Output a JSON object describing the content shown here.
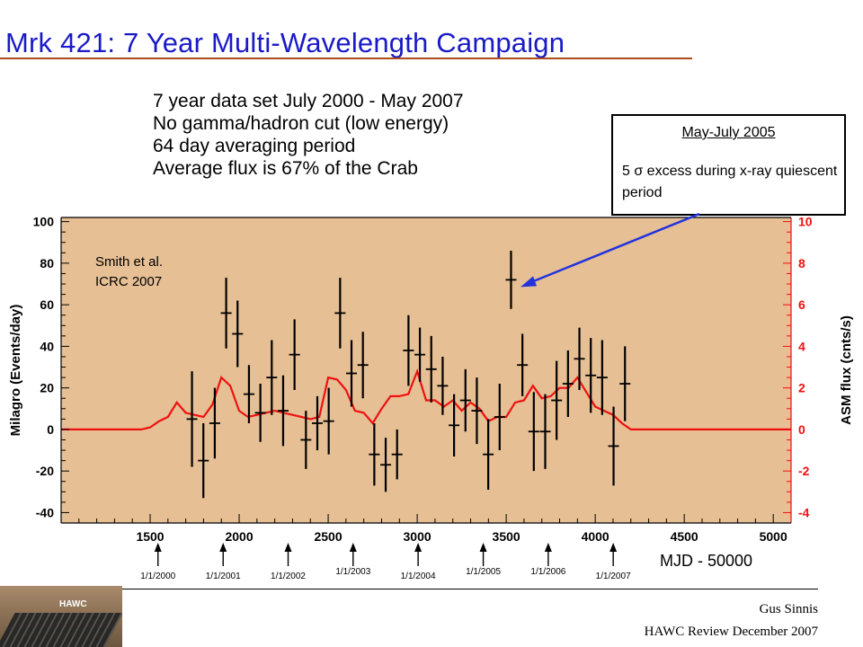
{
  "title": "Mrk 421: 7 Year Multi-Wavelength  Campaign",
  "notes": [
    "7 year data set July 2000 - May 2007",
    "No gamma/hadron cut (low energy)",
    "64 day averaging period",
    "Average flux is 67% of the Crab"
  ],
  "callout": {
    "title": "May-July 2005",
    "body": "5 σ excess during x-ray quiescent period"
  },
  "citation": [
    "Smith et al.",
    "ICRC 2007"
  ],
  "mjd_label": "MJD - 50000",
  "author": "Gus Sinnis",
  "event": "HAWC Review December 2007",
  "logo_text": "HAWC",
  "colors": {
    "title": "#1a1ac8",
    "plot_bg": "#e6bf94",
    "asm": "#ee1111",
    "arrow": "#2233dd"
  },
  "chart_data": {
    "type": "scatter",
    "xlabel": "",
    "ylabel": "Milagro (Events/day)",
    "y2label": "ASM flux (cnts/s)",
    "xlim": [
      1000,
      5100
    ],
    "ylim": [
      -45,
      102
    ],
    "y2lim": [
      -4.5,
      10.2
    ],
    "xticks": [
      1500,
      2000,
      2500,
      3000,
      3500,
      4000,
      4500,
      5000
    ],
    "xtick_labels": [
      "1500",
      "2000",
      "2500",
      "3000",
      "3500",
      "4000",
      "4500",
      "5000"
    ],
    "yticks": [
      -40,
      -20,
      0,
      20,
      40,
      60,
      80,
      100
    ],
    "ytick_labels": [
      "-40",
      "-20",
      "0",
      "20",
      "40",
      "60",
      "80",
      "100"
    ],
    "y2ticks": [
      -4,
      -2,
      0,
      2,
      4,
      6,
      8,
      10
    ],
    "y2tick_labels": [
      "-4",
      "-2",
      "0",
      "2",
      "4",
      "6",
      "8",
      "10"
    ],
    "milagro": [
      {
        "x": 1735,
        "y": 5,
        "err": 23
      },
      {
        "x": 1799,
        "y": -15,
        "err": 18
      },
      {
        "x": 1863,
        "y": 3,
        "err": 17
      },
      {
        "x": 1927,
        "y": 56,
        "err": 17
      },
      {
        "x": 1991,
        "y": 46,
        "err": 16
      },
      {
        "x": 2055,
        "y": 17,
        "err": 14
      },
      {
        "x": 2119,
        "y": 8,
        "err": 14
      },
      {
        "x": 2183,
        "y": 25,
        "err": 18
      },
      {
        "x": 2247,
        "y": 9,
        "err": 17
      },
      {
        "x": 2311,
        "y": 36,
        "err": 17
      },
      {
        "x": 2375,
        "y": -5,
        "err": 14
      },
      {
        "x": 2439,
        "y": 3,
        "err": 13
      },
      {
        "x": 2503,
        "y": 4,
        "err": 16
      },
      {
        "x": 2567,
        "y": 56,
        "err": 17
      },
      {
        "x": 2631,
        "y": 27,
        "err": 16
      },
      {
        "x": 2695,
        "y": 31,
        "err": 16
      },
      {
        "x": 2759,
        "y": -12,
        "err": 15
      },
      {
        "x": 2823,
        "y": -17,
        "err": 13
      },
      {
        "x": 2887,
        "y": -12,
        "err": 12
      },
      {
        "x": 2951,
        "y": 38,
        "err": 17
      },
      {
        "x": 3015,
        "y": 36,
        "err": 13
      },
      {
        "x": 3079,
        "y": 29,
        "err": 16
      },
      {
        "x": 3143,
        "y": 21,
        "err": 14
      },
      {
        "x": 3207,
        "y": 2,
        "err": 15
      },
      {
        "x": 3271,
        "y": 14,
        "err": 15
      },
      {
        "x": 3335,
        "y": 9,
        "err": 16
      },
      {
        "x": 3399,
        "y": -12,
        "err": 17
      },
      {
        "x": 3463,
        "y": 6,
        "err": 16
      },
      {
        "x": 3527,
        "y": 72,
        "err": 14
      },
      {
        "x": 3591,
        "y": 31,
        "err": 15
      },
      {
        "x": 3655,
        "y": -1,
        "err": 19
      },
      {
        "x": 3719,
        "y": -1,
        "err": 18
      },
      {
        "x": 3783,
        "y": 14,
        "err": 19
      },
      {
        "x": 3847,
        "y": 22,
        "err": 16
      },
      {
        "x": 3911,
        "y": 34,
        "err": 15
      },
      {
        "x": 3975,
        "y": 26,
        "err": 18
      },
      {
        "x": 4039,
        "y": 25,
        "err": 18
      },
      {
        "x": 4103,
        "y": -8,
        "err": 19
      },
      {
        "x": 4167,
        "y": 22,
        "err": 18
      }
    ],
    "asm": {
      "x": [
        1000,
        1450,
        1500,
        1550,
        1600,
        1650,
        1700,
        1750,
        1800,
        1850,
        1900,
        1950,
        2000,
        2050,
        2100,
        2150,
        2200,
        2250,
        2300,
        2350,
        2400,
        2450,
        2500,
        2550,
        2600,
        2650,
        2700,
        2750,
        2800,
        2850,
        2900,
        2950,
        3000,
        3050,
        3100,
        3150,
        3200,
        3250,
        3300,
        3350,
        3400,
        3450,
        3500,
        3550,
        3600,
        3650,
        3700,
        3750,
        3800,
        3850,
        3900,
        3950,
        4000,
        4050,
        4100,
        4150,
        4200,
        4250,
        5100
      ],
      "y": [
        0,
        0,
        0.1,
        0.4,
        0.6,
        1.3,
        0.8,
        0.7,
        0.6,
        1.2,
        2.5,
        2.1,
        0.9,
        0.6,
        0.7,
        0.8,
        0.9,
        0.8,
        0.7,
        0.6,
        0.5,
        0.6,
        2.5,
        2.4,
        1.9,
        0.9,
        0.8,
        0.3,
        1.0,
        1.6,
        1.6,
        1.7,
        2.8,
        1.4,
        1.4,
        1.1,
        1.4,
        0.9,
        1.3,
        1.0,
        0.4,
        0.6,
        0.6,
        1.3,
        1.4,
        2.1,
        1.5,
        1.6,
        2.0,
        2.0,
        2.5,
        1.8,
        1.1,
        0.9,
        0.7,
        0.3,
        0,
        0,
        0
      ]
    },
    "date_markers": [
      {
        "label": "1/1/2000",
        "x": 1544
      },
      {
        "label": "1/1/2001",
        "x": 1910
      },
      {
        "label": "1/1/2002",
        "x": 2275
      },
      {
        "label": "1/1/2003",
        "x": 2640
      },
      {
        "label": "1/1/2004",
        "x": 3005
      },
      {
        "label": "1/1/2005",
        "x": 3371
      },
      {
        "label": "1/1/2006",
        "x": 3736
      },
      {
        "label": "1/1/2007",
        "x": 4101
      }
    ],
    "grid": false,
    "legend": "none"
  }
}
